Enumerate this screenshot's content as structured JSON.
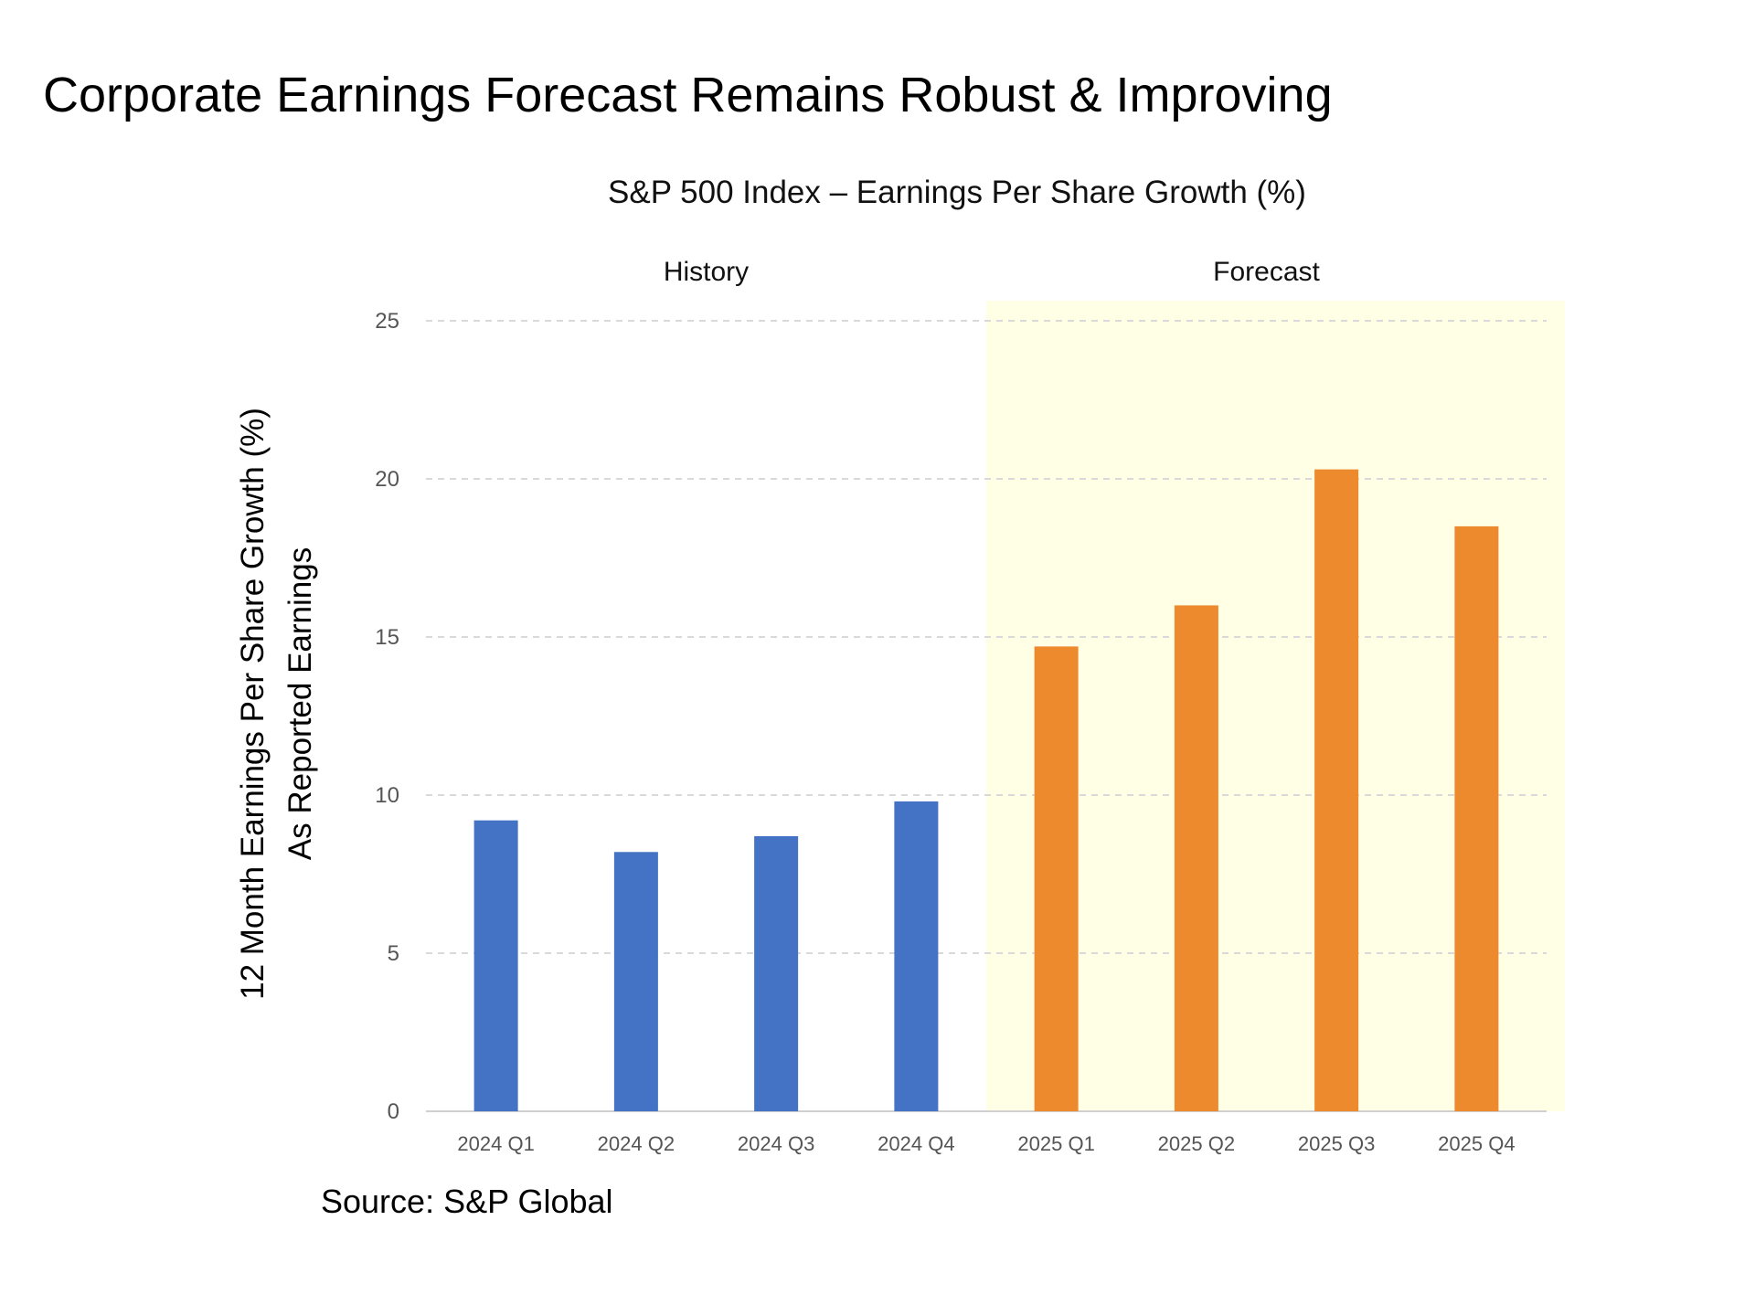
{
  "title": "Corporate Earnings Forecast Remains Robust & Improving",
  "source": "Source: S&P Global",
  "chart_data": {
    "type": "bar",
    "title": "S&P 500 Index – Earnings Per Share Growth (%)",
    "ylabel": [
      "12 Month Earnings Per Share Growth (%)",
      "As Reported Earnings"
    ],
    "xlabel": "",
    "categories": [
      "2024 Q1",
      "2024 Q2",
      "2024 Q3",
      "2024 Q4",
      "2025 Q1",
      "2025 Q2",
      "2025 Q3",
      "2025 Q4"
    ],
    "values": [
      9.2,
      8.2,
      8.7,
      9.8,
      14.7,
      16.0,
      20.3,
      18.5
    ],
    "bar_colors": [
      "#4472C4",
      "#4472C4",
      "#4472C4",
      "#4472C4",
      "#ED8A2E",
      "#ED8A2E",
      "#ED8A2E",
      "#ED8A2E"
    ],
    "ylim": [
      0,
      25
    ],
    "yticks": [
      0,
      5,
      10,
      15,
      20,
      25
    ],
    "grid": true,
    "regions": [
      {
        "label": "History",
        "categories": [
          "2024 Q1",
          "2024 Q4"
        ],
        "shaded": false
      },
      {
        "label": "Forecast",
        "categories": [
          "2025 Q1",
          "2025 Q4"
        ],
        "shaded": true,
        "color": "#FFFFE5"
      }
    ]
  }
}
